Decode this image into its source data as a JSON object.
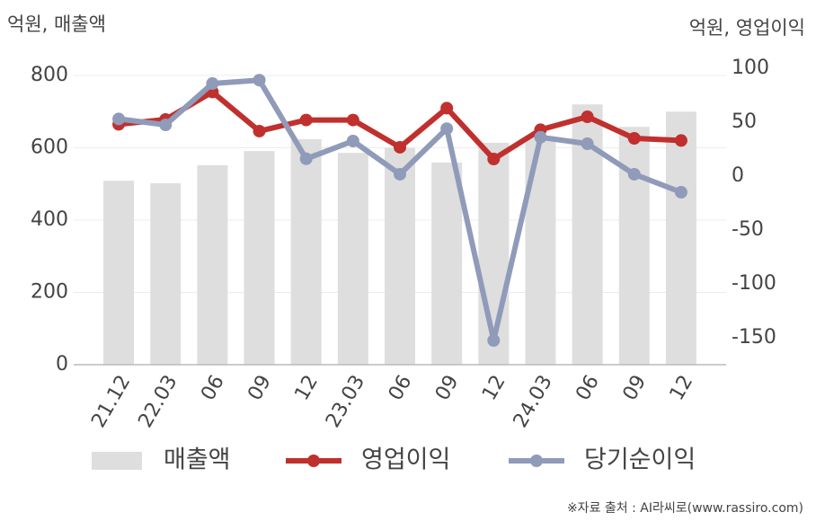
{
  "chart_data": {
    "type": "bar_line",
    "y_axis_title": "억원, 매출액",
    "y2_axis_title": "억원, 영업이익",
    "source": "※자료 출처 : AI라씨로(www.rassiro.com)",
    "categories": [
      "21.12",
      "22.03",
      "06",
      "09",
      "12",
      "23.03",
      "06",
      "09",
      "12",
      "24.03",
      "06",
      "09",
      "12"
    ],
    "series": [
      {
        "name": "매출액",
        "type": "bar",
        "color": "#dedede",
        "values": [
          509,
          502,
          552,
          591,
          624,
          586,
          600,
          559,
          614,
          630,
          720,
          658,
          700
        ]
      },
      {
        "name": "영업이익",
        "type": "line",
        "axis": "y2",
        "color": "#c0302e",
        "values": [
          48,
          52.5,
          78,
          41.7,
          52,
          52,
          26.7,
          63,
          15.8,
          43,
          55,
          35,
          33
        ]
      },
      {
        "name": "당기순이익",
        "type": "line",
        "axis": "y2",
        "color": "#8f9bb8",
        "values": [
          53,
          47.5,
          85.8,
          89,
          16,
          32.5,
          1.7,
          44,
          -152.5,
          36,
          30,
          1.7,
          -15
        ]
      }
    ],
    "ylim": [
      0,
      820
    ],
    "yticks": [
      0,
      200,
      400,
      600,
      800
    ],
    "y2lim": [
      -175,
      100
    ],
    "y2ticks": [
      100,
      50,
      0,
      -50,
      -100,
      -150
    ],
    "grid": true
  }
}
